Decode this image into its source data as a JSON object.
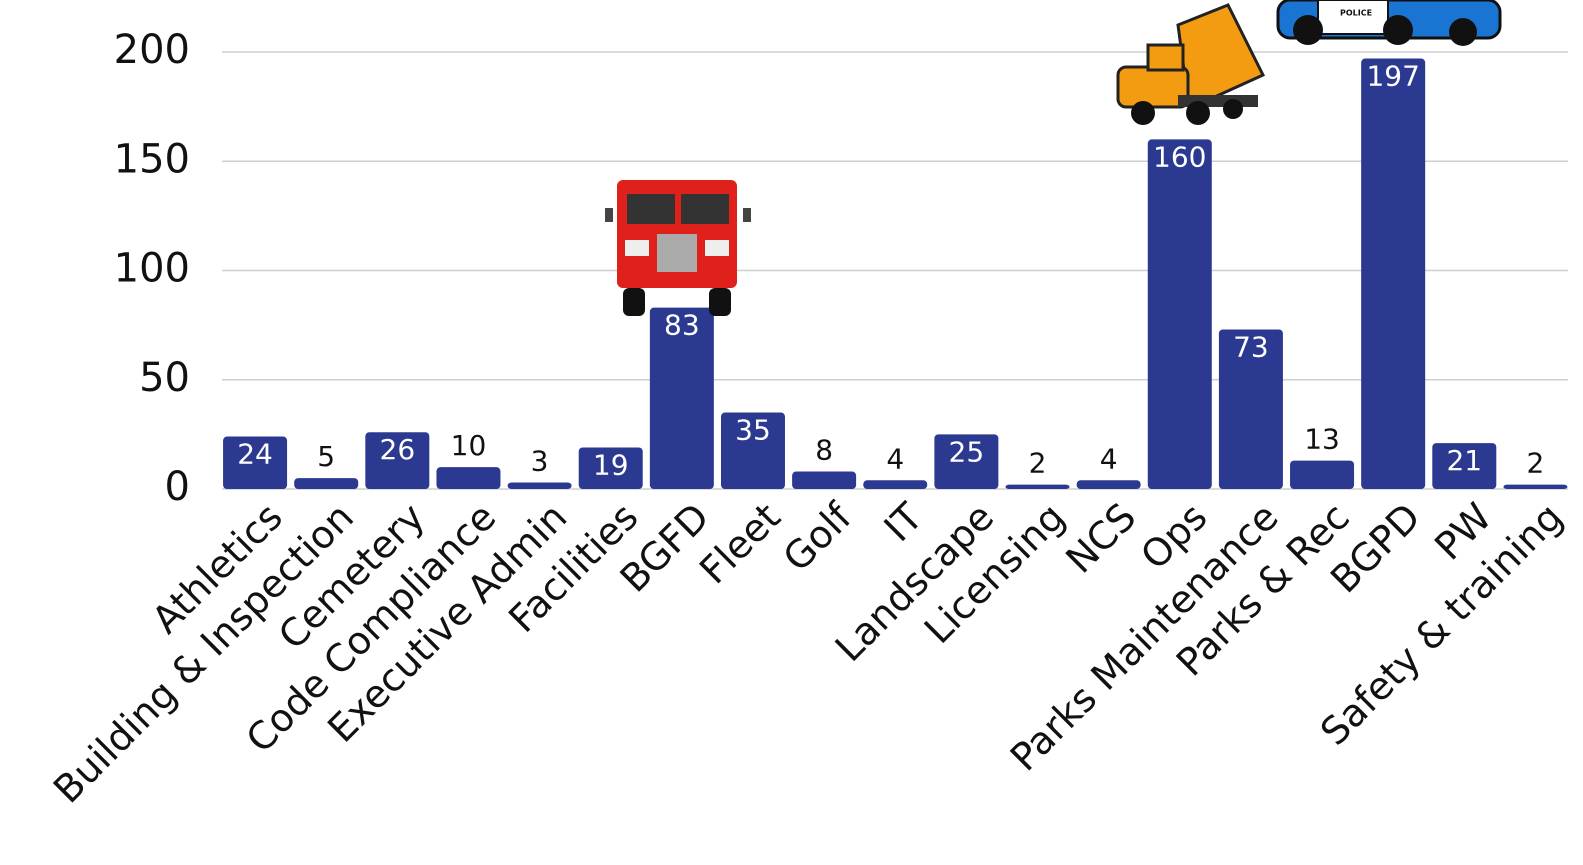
{
  "chart_data": {
    "type": "bar",
    "categories": [
      "Athletics",
      "Building & Inspection",
      "Cemetery",
      "Code Compliance",
      "Executive Admin",
      "Facilities",
      "BGFD",
      "Fleet",
      "Golf",
      "IT",
      "Landscape",
      "Licensing",
      "NCS",
      "Ops",
      "Parks Maintenance",
      "Parks & Rec",
      "BGPD",
      "PW",
      "Safety & training"
    ],
    "values": [
      24,
      5,
      26,
      10,
      3,
      19,
      83,
      35,
      8,
      4,
      25,
      2,
      4,
      160,
      73,
      13,
      197,
      21,
      2
    ],
    "color": "#2b3990",
    "ylim": [
      0,
      200
    ],
    "yticks": [
      0,
      50,
      100,
      150,
      200
    ],
    "grid": true
  }
}
